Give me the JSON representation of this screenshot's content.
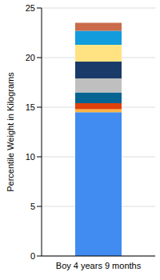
{
  "chart_data": {
    "type": "bar",
    "stacked": true,
    "y_label": "Percentile Weight in Kilograms",
    "categories": [
      "Boy 4 years 9 months"
    ],
    "series": [
      {
        "color": "#418CF0",
        "values": [
          14.5
        ]
      },
      {
        "color": "#FCB441",
        "values": [
          0.3
        ]
      },
      {
        "color": "#E0400A",
        "values": [
          0.6
        ]
      },
      {
        "color": "#056492",
        "values": [
          1.1
        ]
      },
      {
        "color": "#BFBFBF",
        "values": [
          1.4
        ]
      },
      {
        "color": "#1A3B69",
        "values": [
          1.7
        ]
      },
      {
        "color": "#FFE382",
        "values": [
          1.7
        ]
      },
      {
        "color": "#129CDD",
        "values": [
          1.4
        ]
      },
      {
        "color": "#CA6B4B",
        "values": [
          0.8
        ]
      }
    ],
    "ylim": [
      0,
      25
    ],
    "yticks": [
      0,
      5,
      10,
      15,
      20,
      25
    ],
    "grid": true
  }
}
